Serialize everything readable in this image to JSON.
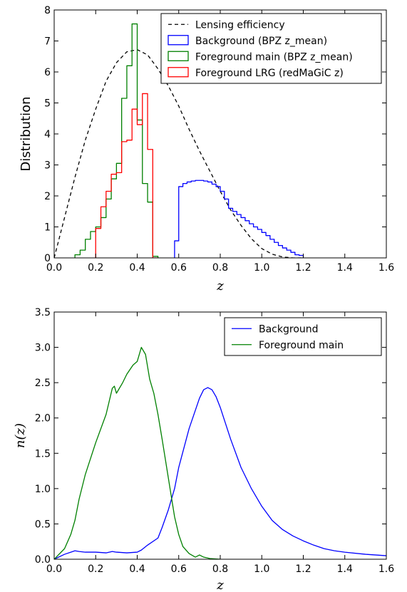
{
  "chart_data": [
    {
      "type": "line",
      "xlabel": "z",
      "ylabel": "Distribution",
      "xlim": [
        0.0,
        1.6
      ],
      "ylim": [
        0,
        8
      ],
      "xticks": [
        "0.0",
        "0.2",
        "0.4",
        "0.6",
        "0.8",
        "1.0",
        "1.2",
        "1.4",
        "1.6"
      ],
      "yticks": [
        "0",
        "1",
        "2",
        "3",
        "4",
        "5",
        "6",
        "7",
        "8"
      ],
      "legend_position": "top-right",
      "series": [
        {
          "name": "Lensing efficiency",
          "kind": "dashed-line",
          "color": "#000000",
          "x": [
            0.0,
            0.05,
            0.1,
            0.15,
            0.2,
            0.25,
            0.3,
            0.35,
            0.4,
            0.45,
            0.5,
            0.55,
            0.6,
            0.65,
            0.7,
            0.75,
            0.8,
            0.85,
            0.9,
            0.95,
            1.0,
            1.05,
            1.1,
            1.15,
            1.2
          ],
          "y": [
            0.0,
            1.3,
            2.6,
            3.8,
            4.8,
            5.7,
            6.3,
            6.65,
            6.72,
            6.55,
            6.1,
            5.55,
            4.9,
            4.15,
            3.45,
            2.8,
            2.15,
            1.55,
            1.05,
            0.62,
            0.3,
            0.12,
            0.03,
            0.0,
            0.0
          ]
        },
        {
          "name": "Background (BPZ z_mean)",
          "kind": "step-histogram",
          "color": "#0000ff",
          "edges": [
            0.58,
            0.6,
            0.62,
            0.64,
            0.66,
            0.68,
            0.7,
            0.72,
            0.74,
            0.76,
            0.78,
            0.8,
            0.82,
            0.84,
            0.86,
            0.88,
            0.9,
            0.92,
            0.94,
            0.96,
            0.98,
            1.0,
            1.02,
            1.04,
            1.06,
            1.08,
            1.1,
            1.12,
            1.14,
            1.16,
            1.18,
            1.2
          ],
          "values": [
            0.55,
            2.3,
            2.4,
            2.45,
            2.48,
            2.5,
            2.5,
            2.48,
            2.45,
            2.38,
            2.3,
            2.15,
            1.9,
            1.6,
            1.5,
            1.4,
            1.3,
            1.2,
            1.1,
            1.0,
            0.92,
            0.82,
            0.72,
            0.6,
            0.5,
            0.4,
            0.32,
            0.25,
            0.18,
            0.1,
            0.08
          ]
        },
        {
          "name": "Foreground main (BPZ z_mean)",
          "kind": "step-histogram",
          "color": "#008000",
          "edges": [
            0.1,
            0.125,
            0.15,
            0.175,
            0.2,
            0.225,
            0.25,
            0.275,
            0.3,
            0.325,
            0.35,
            0.375,
            0.4,
            0.425,
            0.45,
            0.475,
            0.5
          ],
          "values": [
            0.1,
            0.25,
            0.6,
            0.85,
            1.0,
            1.3,
            1.9,
            2.55,
            3.05,
            5.15,
            6.2,
            7.55,
            4.45,
            2.4,
            1.8,
            0.05
          ]
        },
        {
          "name": "Foreground LRG (redMaGiC z)",
          "kind": "step-histogram",
          "color": "#ff0000",
          "edges": [
            0.2,
            0.225,
            0.25,
            0.275,
            0.3,
            0.325,
            0.35,
            0.375,
            0.4,
            0.425,
            0.45,
            0.475,
            0.5
          ],
          "values": [
            0.95,
            1.65,
            2.15,
            2.7,
            2.75,
            3.75,
            3.8,
            4.8,
            4.3,
            5.3,
            3.5,
            0.0
          ]
        }
      ]
    },
    {
      "type": "line",
      "xlabel": "z",
      "ylabel": "n(z)",
      "xlim": [
        0.0,
        1.6
      ],
      "ylim": [
        0.0,
        3.5
      ],
      "xticks": [
        "0.0",
        "0.2",
        "0.4",
        "0.6",
        "0.8",
        "1.0",
        "1.2",
        "1.4",
        "1.6"
      ],
      "yticks": [
        "0.0",
        "0.5",
        "1.0",
        "1.5",
        "2.0",
        "2.5",
        "3.0",
        "3.5"
      ],
      "legend_position": "top-right",
      "series": [
        {
          "name": "Background",
          "color": "#0000ff",
          "x": [
            0.0,
            0.05,
            0.08,
            0.1,
            0.12,
            0.15,
            0.2,
            0.25,
            0.28,
            0.3,
            0.35,
            0.4,
            0.42,
            0.45,
            0.5,
            0.52,
            0.55,
            0.58,
            0.6,
            0.65,
            0.7,
            0.72,
            0.74,
            0.76,
            0.78,
            0.8,
            0.85,
            0.9,
            0.95,
            1.0,
            1.05,
            1.1,
            1.15,
            1.2,
            1.25,
            1.3,
            1.35,
            1.4,
            1.5,
            1.6
          ],
          "y": [
            0.0,
            0.07,
            0.1,
            0.12,
            0.11,
            0.1,
            0.1,
            0.09,
            0.11,
            0.1,
            0.09,
            0.1,
            0.13,
            0.2,
            0.3,
            0.45,
            0.7,
            1.0,
            1.3,
            1.85,
            2.28,
            2.4,
            2.43,
            2.4,
            2.3,
            2.15,
            1.7,
            1.3,
            1.0,
            0.75,
            0.55,
            0.42,
            0.33,
            0.26,
            0.2,
            0.15,
            0.12,
            0.1,
            0.07,
            0.05
          ]
        },
        {
          "name": "Foreground main",
          "color": "#008000",
          "x": [
            0.0,
            0.05,
            0.08,
            0.1,
            0.12,
            0.15,
            0.2,
            0.25,
            0.28,
            0.29,
            0.3,
            0.33,
            0.35,
            0.38,
            0.4,
            0.42,
            0.44,
            0.46,
            0.48,
            0.5,
            0.52,
            0.55,
            0.58,
            0.6,
            0.62,
            0.65,
            0.68,
            0.7,
            0.72,
            0.75,
            0.8
          ],
          "y": [
            0.0,
            0.15,
            0.35,
            0.55,
            0.85,
            1.2,
            1.65,
            2.05,
            2.42,
            2.45,
            2.35,
            2.5,
            2.62,
            2.75,
            2.8,
            3.0,
            2.9,
            2.55,
            2.35,
            2.05,
            1.7,
            1.15,
            0.6,
            0.35,
            0.18,
            0.08,
            0.03,
            0.06,
            0.03,
            0.01,
            0.0
          ]
        }
      ]
    }
  ]
}
